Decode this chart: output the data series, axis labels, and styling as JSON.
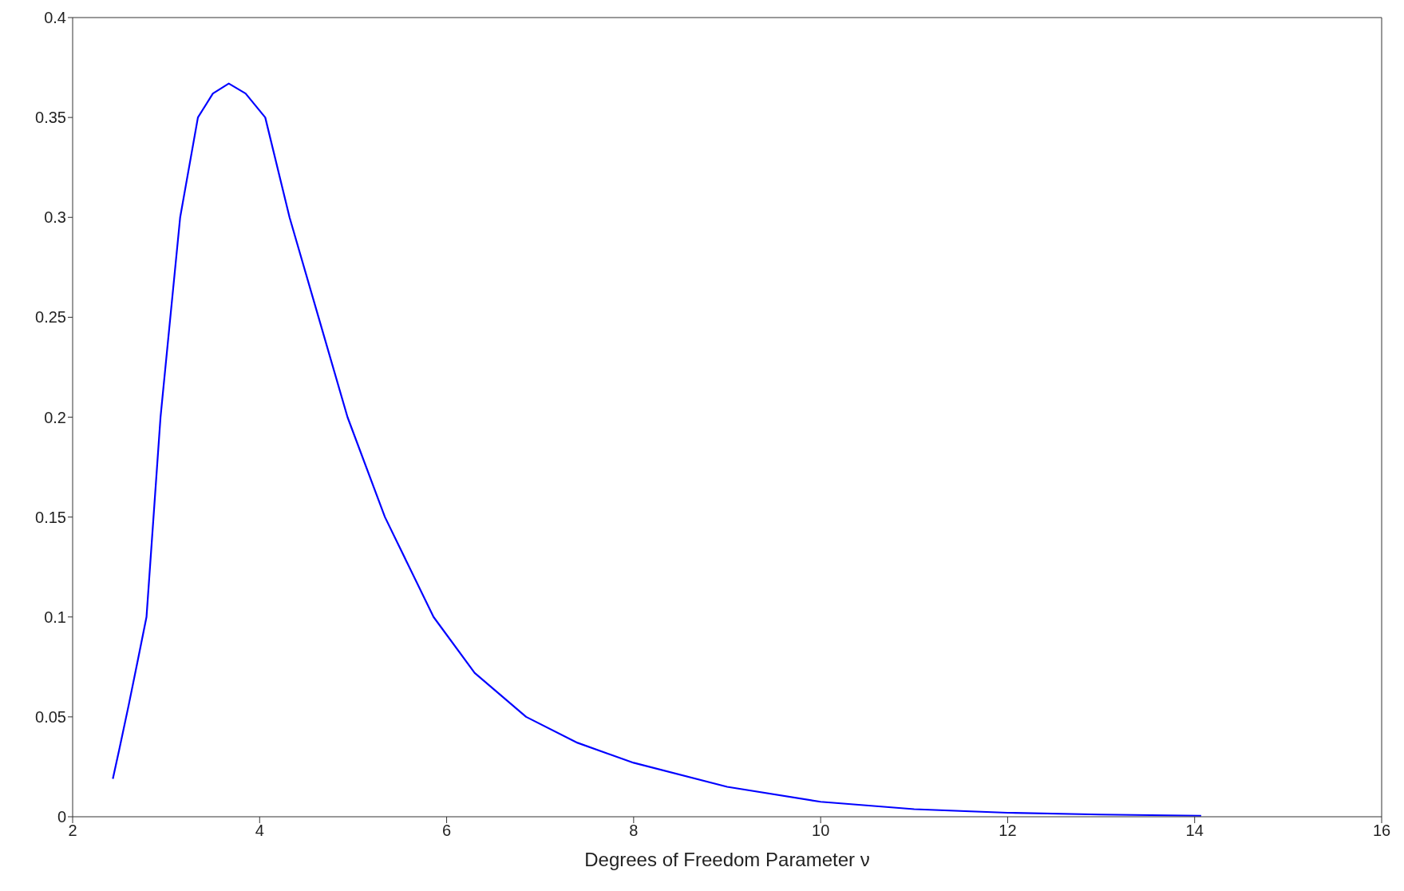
{
  "chart_data": {
    "type": "line",
    "xlabel": "Degrees of Freedom Parameter ν",
    "x": [
      2.43,
      2.5,
      2.6,
      2.7,
      2.79,
      2.94,
      3.15,
      3.34,
      3.5,
      3.67,
      3.85,
      4.06,
      4.32,
      4.63,
      4.94,
      5.34,
      5.86,
      6.3,
      6.85,
      7.4,
      8,
      9,
      10,
      11,
      12,
      13,
      14.07
    ],
    "series": [
      {
        "color": "#0000ff",
        "values": [
          0.019,
          0.034,
          0.056,
          0.079,
          0.1,
          0.2,
          0.3,
          0.35,
          0.362,
          0.367,
          0.362,
          0.35,
          0.3,
          0.25,
          0.2,
          0.15,
          0.1,
          0.072,
          0.05,
          0.037,
          0.027,
          0.015,
          0.0075,
          0.0038,
          0.002,
          0.0011,
          0.0005
        ]
      }
    ],
    "xlim": [
      2,
      16
    ],
    "xticks": [
      2,
      4,
      6,
      8,
      10,
      12,
      14,
      16
    ],
    "ylim": [
      0,
      0.4
    ],
    "yticks": [
      0,
      0.05,
      0.1,
      0.15,
      0.2,
      0.25,
      0.3,
      0.35,
      0.4
    ],
    "grid": false,
    "legend": false,
    "marker": "none",
    "line_style": "solid"
  }
}
